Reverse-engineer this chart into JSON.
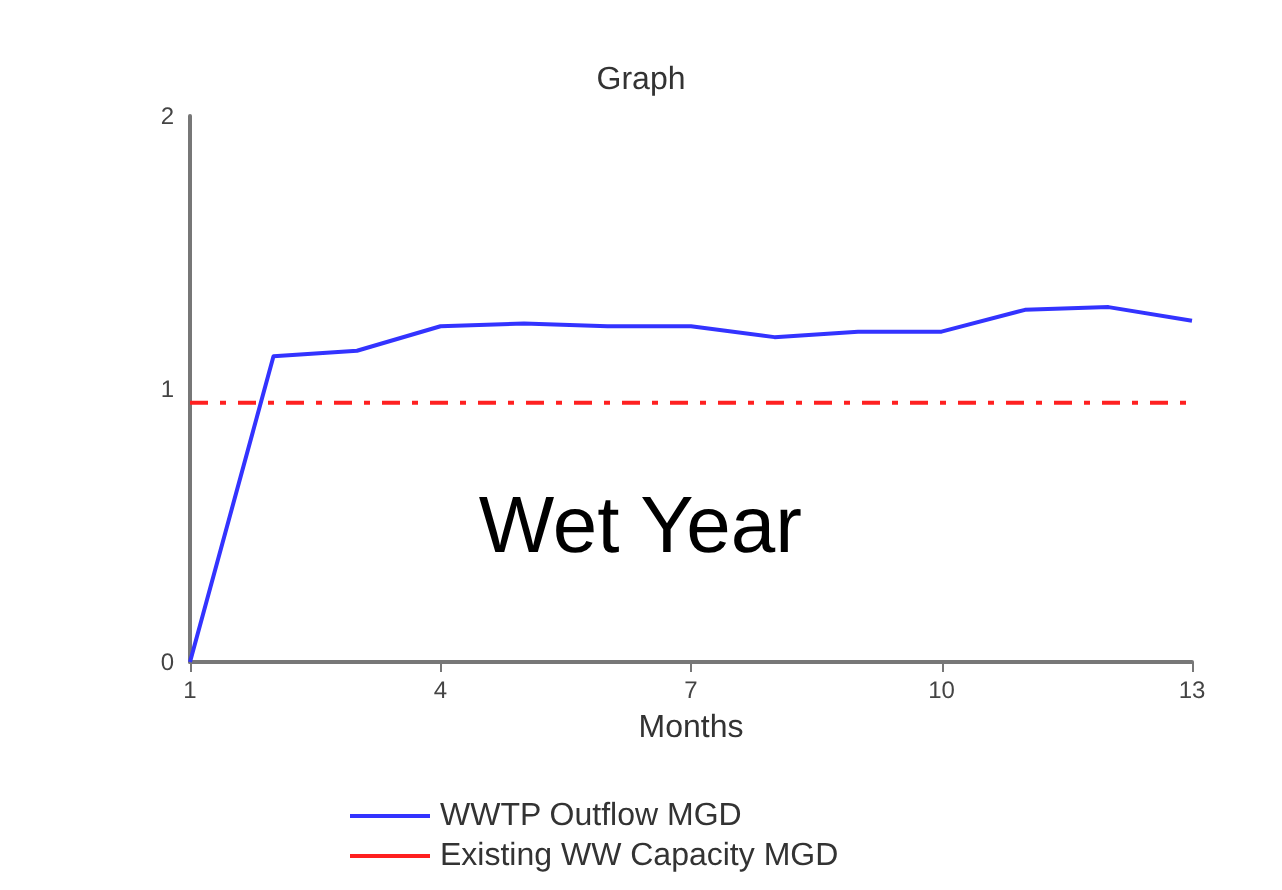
{
  "chart_data": {
    "type": "line",
    "title": "Graph",
    "xlabel": "Months",
    "xlim": [
      1,
      13
    ],
    "xticks": [
      1,
      4,
      7,
      10,
      13
    ],
    "ylim": [
      0,
      2
    ],
    "yticks": [
      0,
      1,
      2
    ],
    "grid": false,
    "legend": "bottom",
    "marker": "none",
    "annotations": [
      "Wet Year"
    ],
    "series": [
      {
        "name": "WWTP Outflow MGD",
        "color": "#3333ff",
        "line_style": "solid",
        "x": [
          1,
          2,
          3,
          4,
          5,
          6,
          7,
          8,
          9,
          10,
          11,
          12,
          13
        ],
        "values": [
          0,
          1.12,
          1.14,
          1.23,
          1.24,
          1.23,
          1.23,
          1.19,
          1.21,
          1.21,
          1.29,
          1.3,
          1.25
        ]
      },
      {
        "name": "Existing WW Capacity MGD",
        "color": "#ff2020",
        "line_style": "dashed",
        "x": [
          1,
          13
        ],
        "values": [
          0.95,
          0.95
        ]
      }
    ]
  }
}
